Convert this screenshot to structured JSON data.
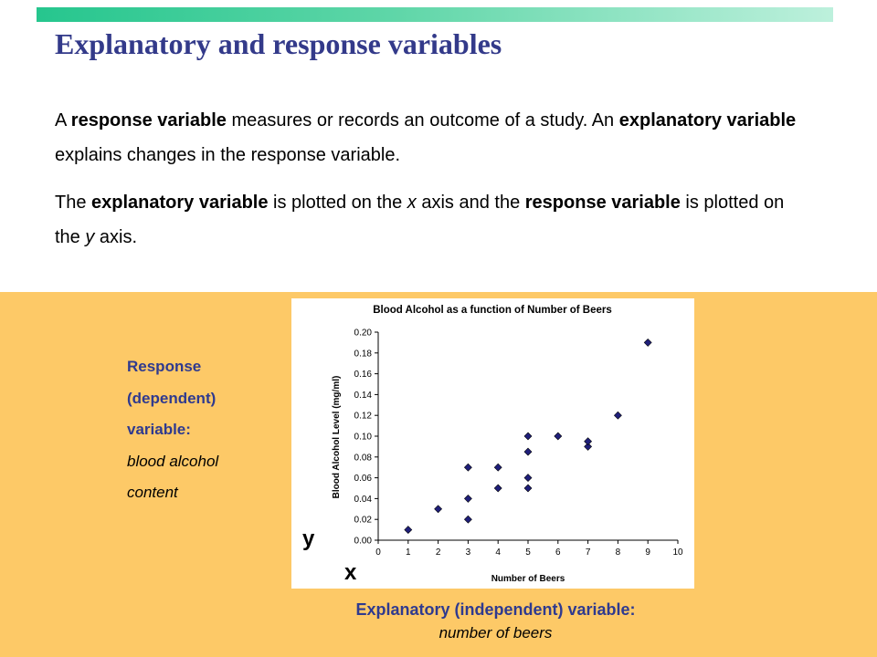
{
  "slide": {
    "title": "Explanatory and response variables",
    "paragraph1": {
      "t1": "A ",
      "b1": "response variable",
      "t2": " measures or records an outcome of a study. An ",
      "b2": "explanatory variable",
      "t3": " explains changes in the response variable."
    },
    "paragraph2": {
      "t1": "The ",
      "b1": "explanatory variable",
      "t2": " is plotted on the ",
      "i1": "x",
      "t3": " axis and the ",
      "b2": "response variable",
      "t4": " is plotted on the ",
      "i2": "y",
      "t5": " axis."
    },
    "response_label": {
      "line1": "Response",
      "line2": "(dependent)",
      "line3": "variable:",
      "line4": "blood alcohol",
      "line5": "content"
    },
    "y_letter": "y",
    "x_letter": "x",
    "explanatory_label": "Explanatory (independent) variable:",
    "explanatory_desc": "number of beers"
  },
  "colors": {
    "title": "#333a8a",
    "panel": "#fdc967",
    "label_blue": "#2f3a8f",
    "marker": "#1f1f7a"
  },
  "chart_data": {
    "type": "scatter",
    "title": "Blood Alcohol as a function of Number of Beers",
    "xlabel": "Number of Beers",
    "ylabel": "Blood Alcohol Level (mg/ml)",
    "xlim": [
      0,
      10
    ],
    "ylim": [
      0,
      0.2
    ],
    "xticks": [
      "0",
      "1",
      "2",
      "3",
      "4",
      "5",
      "6",
      "7",
      "8",
      "9",
      "10"
    ],
    "yticks": [
      "0.00",
      "0.02",
      "0.04",
      "0.06",
      "0.08",
      "0.10",
      "0.12",
      "0.14",
      "0.16",
      "0.18",
      "0.20"
    ],
    "grid": false,
    "marker": "diamond",
    "points": [
      {
        "x": 1,
        "y": 0.01
      },
      {
        "x": 2,
        "y": 0.03
      },
      {
        "x": 3,
        "y": 0.02
      },
      {
        "x": 3,
        "y": 0.04
      },
      {
        "x": 3,
        "y": 0.07
      },
      {
        "x": 4,
        "y": 0.05
      },
      {
        "x": 4,
        "y": 0.07
      },
      {
        "x": 5,
        "y": 0.05
      },
      {
        "x": 5,
        "y": 0.06
      },
      {
        "x": 5,
        "y": 0.085
      },
      {
        "x": 5,
        "y": 0.1
      },
      {
        "x": 6,
        "y": 0.1
      },
      {
        "x": 7,
        "y": 0.09
      },
      {
        "x": 7,
        "y": 0.095
      },
      {
        "x": 8,
        "y": 0.12
      },
      {
        "x": 9,
        "y": 0.19
      }
    ]
  }
}
